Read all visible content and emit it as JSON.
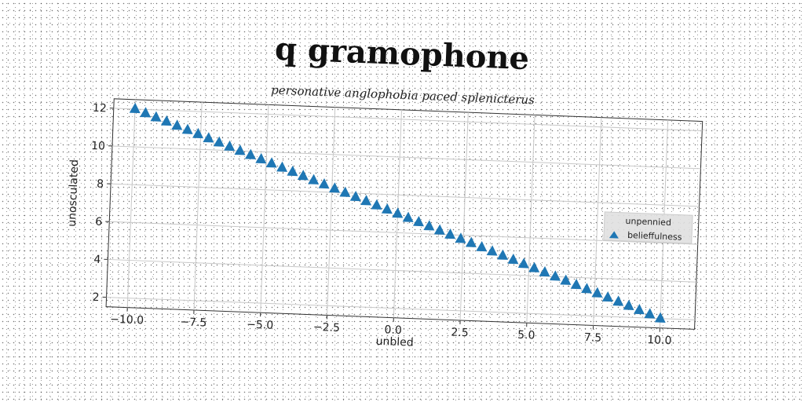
{
  "chart_data": {
    "type": "scatter",
    "title": "q gramophone",
    "subtitle": "personative anglophobia paced splenicterus",
    "xlabel": "unbled",
    "ylabel": "unosculated",
    "xlim": [
      -10.8,
      11.3
    ],
    "ylim": [
      1.5,
      12.5
    ],
    "x_ticks": [
      -10.0,
      -7.5,
      -5.0,
      -2.5,
      0.0,
      2.5,
      5.0,
      7.5,
      10.0
    ],
    "x_tick_labels": [
      "−10.0",
      "−7.5",
      "−5.0",
      "−2.5",
      "0.0",
      "2.5",
      "5.0",
      "7.5",
      "10.0"
    ],
    "y_ticks": [
      2,
      4,
      6,
      8,
      10,
      12
    ],
    "y_tick_labels": [
      "2",
      "4",
      "6",
      "8",
      "10",
      "12"
    ],
    "grid": true,
    "legend": {
      "title": "unpennied",
      "placement": "center-right"
    },
    "series": [
      {
        "name": "belieffulness",
        "marker": "triangle",
        "color": "#1f77b4",
        "x": [
          -10.0,
          -9.6,
          -9.2,
          -8.8,
          -8.4,
          -8.0,
          -7.6,
          -7.2,
          -6.8,
          -6.4,
          -6.0,
          -5.6,
          -5.2,
          -4.8,
          -4.4,
          -4.0,
          -3.6,
          -3.2,
          -2.8,
          -2.4,
          -2.0,
          -1.6,
          -1.2,
          -0.8,
          -0.4,
          0.0,
          0.4,
          0.8,
          1.2,
          1.6,
          2.0,
          2.4,
          2.8,
          3.2,
          3.6,
          4.0,
          4.4,
          4.8,
          5.2,
          5.6,
          6.0,
          6.4,
          6.8,
          7.2,
          7.6,
          8.0,
          8.4,
          8.8,
          9.2,
          9.6,
          10.0
        ],
        "y": [
          12.0,
          11.8,
          11.6,
          11.4,
          11.2,
          11.0,
          10.8,
          10.6,
          10.4,
          10.2,
          10.0,
          9.8,
          9.6,
          9.4,
          9.2,
          9.0,
          8.8,
          8.6,
          8.4,
          8.2,
          8.0,
          7.8,
          7.6,
          7.4,
          7.2,
          7.0,
          6.8,
          6.6,
          6.4,
          6.2,
          6.0,
          5.8,
          5.6,
          5.4,
          5.2,
          5.0,
          4.8,
          4.6,
          4.4,
          4.2,
          4.0,
          3.8,
          3.6,
          3.4,
          3.2,
          3.0,
          2.8,
          2.6,
          2.4,
          2.2,
          2.0
        ]
      }
    ]
  }
}
